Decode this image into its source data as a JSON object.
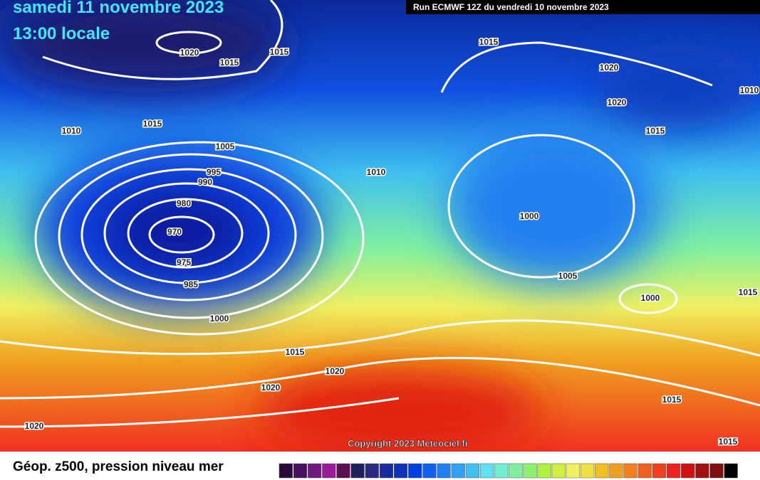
{
  "header": {
    "date": "samedi 11 novembre 2023",
    "time": "13:00 locale",
    "run": "Run ECMWF 12Z du vendredi 10 novembre 2023"
  },
  "copyright": "Copyright 2023 Meteociel.fr",
  "legend": {
    "title": "Géop. z500, pression niveau mer",
    "colors": [
      "#2a0a3a",
      "#4a1060",
      "#701a80",
      "#9a1a9a",
      "#5a1050",
      "#202060",
      "#2a2a80",
      "#1a2aa0",
      "#1030c0",
      "#0040e0",
      "#1060f0",
      "#2080f0",
      "#30a0f0",
      "#40c0f0",
      "#60e0f0",
      "#70f0d0",
      "#80f0a0",
      "#90f070",
      "#b0f040",
      "#d0f040",
      "#f0f060",
      "#f0e040",
      "#f0c020",
      "#f0a020",
      "#f08020",
      "#f06020",
      "#f04020",
      "#f02020",
      "#d01010",
      "#a01010",
      "#801010",
      "#000000"
    ]
  },
  "isobars": [
    "1020",
    "1015",
    "1015",
    "1015",
    "1020",
    "1020",
    "1015",
    "1010",
    "1015",
    "1005",
    "995",
    "990",
    "980",
    "970",
    "975",
    "985",
    "1000",
    "1010",
    "1000",
    "1005",
    "1000",
    "1015",
    "1015",
    "1020",
    "1020",
    "1020",
    "1015",
    "1015",
    "1010"
  ]
}
